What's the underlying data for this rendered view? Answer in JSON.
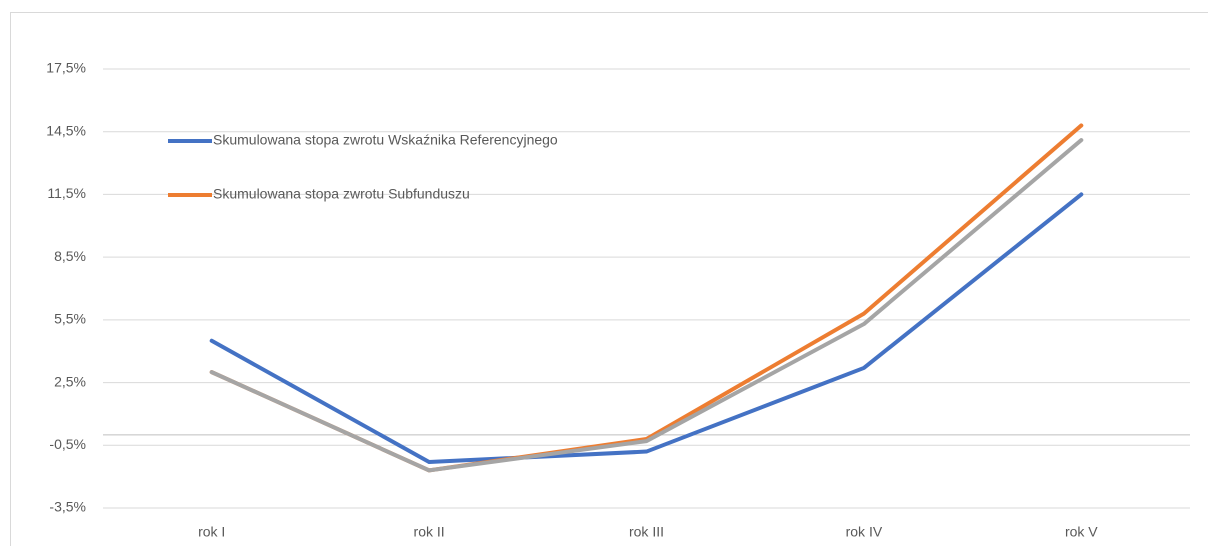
{
  "chart_data": {
    "type": "line",
    "categories": [
      "rok I",
      "rok II",
      "rok III",
      "rok IV",
      "rok V"
    ],
    "series": [
      {
        "name": "Skumulowana stopa zwrotu Wskaźnika Referencyjnego",
        "color": "#4472c4",
        "values": [
          4.5,
          -1.3,
          -0.8,
          3.2,
          11.5
        ]
      },
      {
        "name": "Skumulowana stopa zwrotu Subfunduszu",
        "color": "#ed7d31",
        "values": [
          3.0,
          -1.7,
          -0.2,
          5.8,
          14.8
        ]
      },
      {
        "color": "#a5a5a5",
        "values": [
          3.0,
          -1.7,
          -0.3,
          5.3,
          14.1
        ]
      }
    ],
    "ylim": [
      -3.5,
      17.5
    ],
    "yticks": [
      {
        "value": -3.5,
        "label": "-3,5%"
      },
      {
        "value": -0.5,
        "label": "-0,5%"
      },
      {
        "value": 2.5,
        "label": "2,5%"
      },
      {
        "value": 5.5,
        "label": "5,5%"
      },
      {
        "value": 8.5,
        "label": "8,5%"
      },
      {
        "value": 11.5,
        "label": "11,5%"
      },
      {
        "value": 14.5,
        "label": "14,5%"
      },
      {
        "value": 17.5,
        "label": "17,5%"
      }
    ],
    "grid": true,
    "legend": "top-left"
  }
}
